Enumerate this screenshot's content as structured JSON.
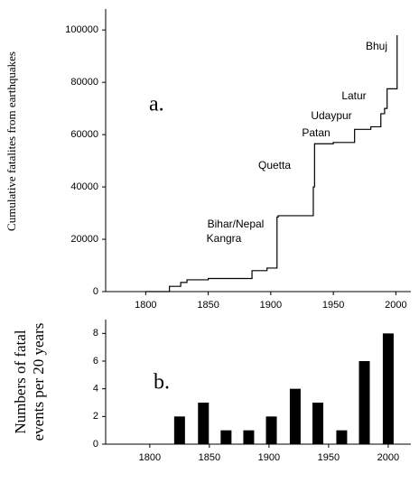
{
  "chart_data": [
    {
      "type": "line",
      "drawstyle": "steps-post",
      "color": "#000000",
      "ylabel": "Cumulative fatalites from earthquakes",
      "panel_label": "a.",
      "x": [
        1800,
        1819,
        1828,
        1833,
        1850,
        1885,
        1897,
        1905,
        1906,
        1934,
        1935,
        1950,
        1967,
        1980,
        1988,
        1991,
        1993,
        2001
      ],
      "values": [
        0,
        2000,
        3500,
        4500,
        5000,
        8000,
        9000,
        28500,
        29000,
        40000,
        56500,
        57000,
        62000,
        63000,
        68000,
        70000,
        77500,
        98000
      ],
      "annotations": [
        "Bhuj",
        "Latur",
        "Udaypur",
        "Patan",
        "Quetta",
        "Bihar/Nepal",
        "Kangra"
      ],
      "xlim": [
        1768,
        2012
      ],
      "xticks": [
        1800,
        1850,
        1900,
        1950,
        2000
      ],
      "ylim": [
        0,
        108000
      ],
      "yticks": [
        0,
        20000,
        40000,
        60000,
        80000,
        100000
      ]
    },
    {
      "type": "bar",
      "color": "#000000",
      "ylabel": [
        "Numbers of fatal",
        "events per 20 years"
      ],
      "panel_label": "b.",
      "x": [
        1825,
        1845,
        1864,
        1883,
        1902,
        1922,
        1941,
        1961,
        1980,
        2000
      ],
      "values": [
        2,
        3,
        1,
        1,
        2,
        4,
        3,
        1,
        6,
        8
      ],
      "xlim": [
        1763,
        2019
      ],
      "xticks": [
        1800,
        1850,
        1900,
        1950,
        2000
      ],
      "ylim": [
        0,
        9
      ],
      "yticks": [
        0,
        2,
        4,
        6,
        8
      ]
    }
  ]
}
